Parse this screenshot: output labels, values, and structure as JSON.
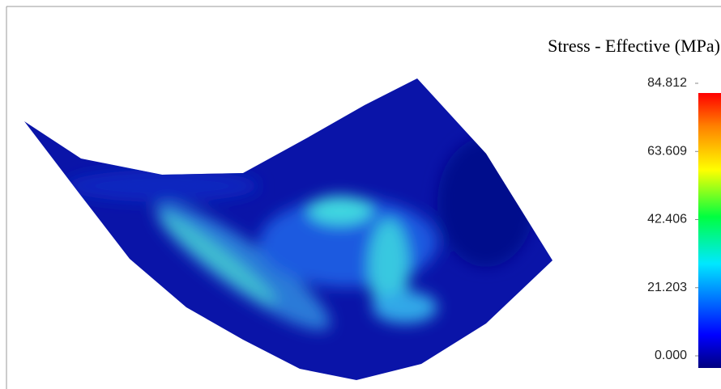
{
  "chart_data": {
    "type": "surface",
    "title": "Stress - Effective (MPa)",
    "colorbar": {
      "lim": [
        0,
        84.812
      ],
      "ticks": [
        {
          "value": 0,
          "label": "0.000"
        },
        21.203,
        42.406,
        63.609,
        84.812
      ]
    }
  }
}
